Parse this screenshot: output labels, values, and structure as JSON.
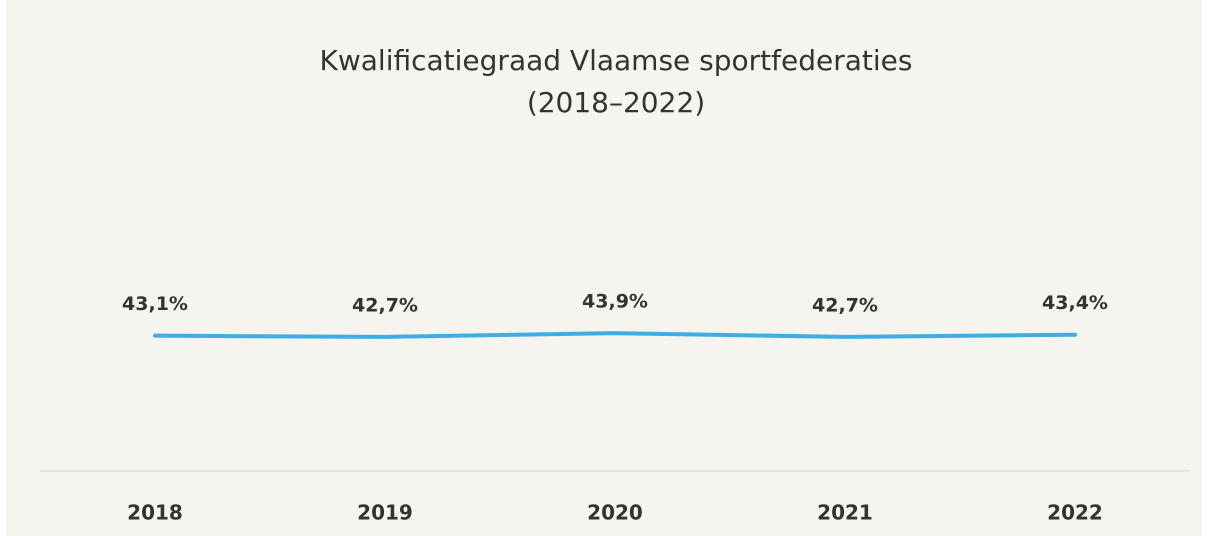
{
  "chart_data": {
    "type": "line",
    "title": [
      "Kwalificatiegraad Vlaamse sportfederaties",
      "(2018–2022)"
    ],
    "categories": [
      "2018",
      "2019",
      "2020",
      "2021",
      "2022"
    ],
    "series": [
      {
        "name": "Kwalificatiegraad",
        "color": "#3daee3",
        "values": [
          43.1,
          42.7,
          43.9,
          42.7,
          43.4
        ],
        "value_labels": [
          "43,1%",
          "42,7%",
          "43,9%",
          "42,7%",
          "43,4%"
        ]
      }
    ],
    "ylim": [
      0,
      100
    ]
  }
}
